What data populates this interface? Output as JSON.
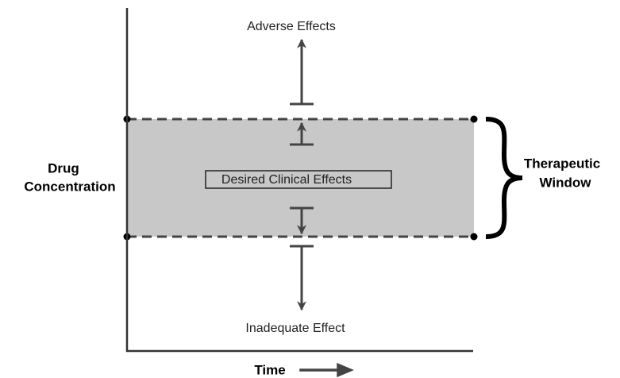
{
  "y_axis_label": [
    "Drug",
    "Concentration"
  ],
  "x_axis_label": "Time",
  "window_label": [
    "Therapeutic",
    "Window"
  ],
  "above_label": "Adverse Effects",
  "center_label": "Desired Clinical Effects",
  "below_label": "Inadequate Effect"
}
